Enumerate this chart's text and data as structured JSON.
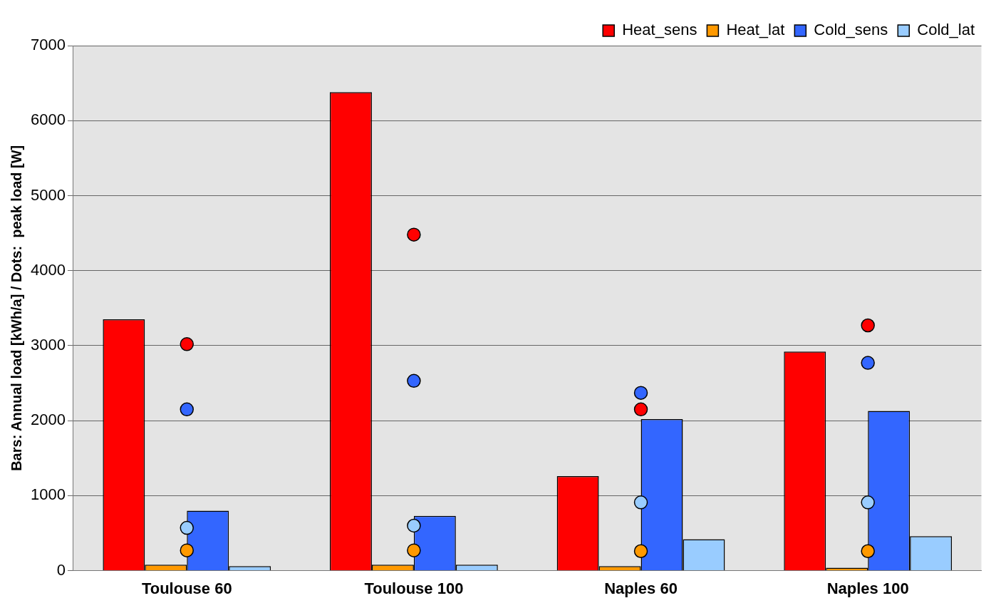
{
  "chart_data": {
    "type": "bar",
    "ylabel": "Bars: Annual load [kWh/a] / Dots:  peak load [W]",
    "categories": [
      "Toulouse 60",
      "Toulouse 100",
      "Naples 60",
      "Naples 100"
    ],
    "series": [
      {
        "name": "Heat_sens",
        "color": "#ff0000",
        "values": [
          3350,
          6380,
          1260,
          2920
        ]
      },
      {
        "name": "Heat_lat",
        "color": "#ff9900",
        "values": [
          80,
          80,
          60,
          40
        ]
      },
      {
        "name": "Cold_sens",
        "color": "#3366ff",
        "values": [
          800,
          730,
          2020,
          2130
        ]
      },
      {
        "name": "Cold_lat",
        "color": "#99ccff",
        "values": [
          60,
          80,
          420,
          460
        ]
      },
      {
        "type": "scatter",
        "color": "#ff0000",
        "x": [
          "Toulouse 60",
          "Toulouse 100",
          "Naples 60",
          "Naples 100"
        ],
        "values": [
          3020,
          4480,
          2150,
          3270
        ]
      },
      {
        "type": "scatter",
        "color": "#3366ff",
        "x": [
          "Toulouse 60",
          "Toulouse 100",
          "Naples 60",
          "Naples 100"
        ],
        "values": [
          2150,
          2530,
          2370,
          2770
        ]
      },
      {
        "type": "scatter",
        "color": "#99ccff",
        "x": [
          "Toulouse 60",
          "Toulouse 100",
          "Naples 60",
          "Naples 100"
        ],
        "values": [
          570,
          600,
          910,
          910
        ]
      },
      {
        "type": "scatter",
        "color": "#ff9900",
        "x": [
          "Toulouse 60",
          "Toulouse 100",
          "Naples 60",
          "Naples 100"
        ],
        "values": [
          270,
          270,
          260,
          260
        ]
      }
    ],
    "ylim": [
      0,
      7000
    ],
    "yticks": [
      0,
      1000,
      2000,
      3000,
      4000,
      5000,
      6000,
      7000
    ],
    "grid": "y",
    "legend": "top right",
    "marker": "circle"
  }
}
